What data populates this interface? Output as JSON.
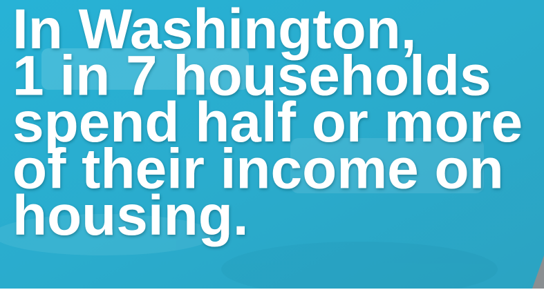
{
  "headline": {
    "lines": [
      "In Washington,",
      "1 in 7 households",
      "spend half or more",
      "of their income on",
      "housing."
    ]
  }
}
